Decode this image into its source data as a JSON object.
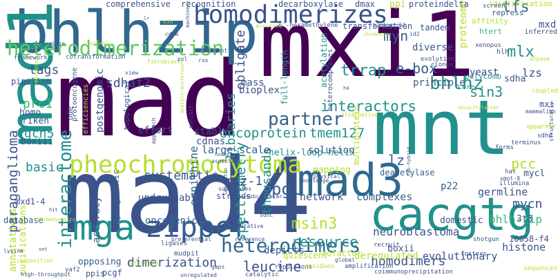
{
  "palette": {
    "dark_purple": "#440154",
    "indigo": "#3b528b",
    "navy": "#31688e",
    "steel_blue": "#355f8d",
    "teal": "#21918c",
    "green": "#35b779",
    "light_green": "#5ec962",
    "yellow_green": "#b5de2b",
    "yellow": "#fde725"
  },
  "words": [
    {
      "text": "mad",
      "color": "#440154"
    },
    {
      "text": "mad4",
      "color": "#3b528b"
    },
    {
      "text": "mxi1",
      "color": "#440154"
    },
    {
      "text": "mnt",
      "color": "#21918c"
    },
    {
      "text": "bhlhzip",
      "color": "#31688e"
    },
    {
      "text": "mad1",
      "color": "#21918c"
    },
    {
      "text": "cacgtg",
      "color": "#21918c"
    },
    {
      "text": "mad3",
      "color": "#31688e"
    },
    {
      "text": "homodimerizes",
      "color": "#3b528b"
    },
    {
      "text": "heterodimerization",
      "color": "#5ec962"
    },
    {
      "text": "pheochromocytoma",
      "color": "#b5de2b"
    },
    {
      "text": "zipper",
      "color": "#355f8d"
    },
    {
      "text": "mga",
      "color": "#21918c"
    },
    {
      "text": "heterodimers",
      "color": "#31688e"
    },
    {
      "text": "interactome",
      "color": "#21918c"
    },
    {
      "text": "oncoprotein",
      "color": "#21918c"
    },
    {
      "text": "tmem127",
      "color": "#21918c"
    },
    {
      "text": "interactors",
      "color": "#21918c"
    },
    {
      "text": "partner",
      "color": "#355f8d"
    },
    {
      "text": "paraganglioma",
      "color": "#3b528b"
    },
    {
      "text": "spectrometry",
      "color": "#21918c"
    },
    {
      "text": "libraries",
      "color": "#21918c"
    },
    {
      "text": "thousands",
      "color": "#21918c"
    },
    {
      "text": "msin3",
      "color": "#b5de2b"
    },
    {
      "text": "resource",
      "color": "#21918c"
    },
    {
      "text": "leucine",
      "color": "#3b528b"
    },
    {
      "text": "dimerization",
      "color": "#3b528b"
    },
    {
      "text": "homodimers",
      "color": "#3b528b"
    },
    {
      "text": "neuroblastoma",
      "color": "#3b528b"
    },
    {
      "text": "pgl",
      "color": "#355f8d"
    },
    {
      "text": "bhlhz",
      "color": "#21918c"
    },
    {
      "text": "trrap",
      "color": "#21918c"
    },
    {
      "text": "e-box",
      "color": "#355f8d"
    },
    {
      "text": "myn",
      "color": "#355f8d"
    },
    {
      "text": "lz",
      "color": "#355f8d"
    },
    {
      "text": "sin3",
      "color": "#21918c"
    },
    {
      "text": "tfs",
      "color": "#31688e"
    },
    {
      "text": "mlx",
      "color": "#21918c"
    },
    {
      "text": "pcc",
      "color": "#b5de2b"
    },
    {
      "text": "mycn",
      "color": "#3b528b"
    },
    {
      "text": "bhlh-zip",
      "color": "#35b779"
    },
    {
      "text": "miz-1",
      "color": "#3b528b"
    },
    {
      "text": "sdhaf2",
      "color": "#3b528b"
    },
    {
      "text": "tags",
      "color": "#3b528b"
    },
    {
      "text": "prc1",
      "color": "#35b779"
    },
    {
      "text": "gcn5",
      "color": "#21918c"
    },
    {
      "text": "basic",
      "color": "#21918c"
    },
    {
      "text": "systematic",
      "color": "#3b528b"
    },
    {
      "text": "ornithine",
      "color": "#31688e"
    },
    {
      "text": "obligate",
      "color": "#3b528b"
    },
    {
      "text": "proteome",
      "color": "#b5de2b"
    },
    {
      "text": "network",
      "color": "#3b528b"
    },
    {
      "text": "complexes",
      "color": "#355f8d"
    },
    {
      "text": "germline",
      "color": "#3b528b"
    },
    {
      "text": "histone",
      "color": "#3b528b"
    },
    {
      "text": "evolutionary",
      "color": "#3b528b"
    },
    {
      "text": "deregulated",
      "color": "#b5de2b"
    },
    {
      "text": "domestic",
      "color": "#3b528b"
    },
    {
      "text": "boxii",
      "color": "#3b528b"
    },
    {
      "text": "mapping",
      "color": "#b5de2b"
    },
    {
      "text": "undruggable",
      "color": "#3b528b"
    },
    {
      "text": "oncogenic",
      "color": "#355f8d"
    },
    {
      "text": "accuracy",
      "color": "#3b528b"
    },
    {
      "text": "phylogenetic",
      "color": "#355f8d"
    },
    {
      "text": "annotations",
      "color": "#b5de2b"
    },
    {
      "text": "purifications",
      "color": "#b5de2b"
    },
    {
      "text": "database",
      "color": "#355f8d"
    },
    {
      "text": "mxd1-4",
      "color": "#3b528b"
    },
    {
      "text": "opposing",
      "color": "#355f8d"
    },
    {
      "text": "pcgf",
      "color": "#3b528b"
    },
    {
      "text": "ppis",
      "color": "#3b528b"
    },
    {
      "text": "strands",
      "color": "#3b528b"
    },
    {
      "text": "depicts",
      "color": "#3b528b"
    },
    {
      "text": "p22",
      "color": "#355f8d"
    },
    {
      "text": "3t3",
      "color": "#3b528b"
    },
    {
      "text": "mycl",
      "color": "#3b528b"
    },
    {
      "text": "10058-f4",
      "color": "#3b528b"
    },
    {
      "text": "multiprotein",
      "color": "#b5de2b"
    },
    {
      "text": "deacetylase",
      "color": "#355f8d"
    },
    {
      "text": "helix-loop-helix",
      "color": "#21918c"
    },
    {
      "text": "large-scale",
      "color": "#355f8d"
    },
    {
      "text": "solution",
      "color": "#3b528b"
    },
    {
      "text": "stable",
      "color": "#3b528b"
    },
    {
      "text": "cdnas",
      "color": "#3b528b"
    },
    {
      "text": "bioplex",
      "color": "#3b528b"
    },
    {
      "text": "effort",
      "color": "#3b528b"
    },
    {
      "text": "boxiii",
      "color": "#3b528b"
    },
    {
      "text": "riken",
      "color": "#3b528b"
    },
    {
      "text": "homo",
      "color": "#3b528b"
    },
    {
      "text": "pipeline",
      "color": "#3b528b"
    },
    {
      "text": "full-length",
      "color": "#21918c"
    },
    {
      "text": "acetylation",
      "color": "#21918c"
    },
    {
      "text": "diverse",
      "color": "#3b528b"
    },
    {
      "text": "principle",
      "color": "#355f8d"
    },
    {
      "text": "yeast",
      "color": "#3b528b"
    },
    {
      "text": "polycomb",
      "color": "#21918c"
    },
    {
      "text": "lzs",
      "color": "#3b528b"
    },
    {
      "text": "sdha",
      "color": "#3b528b"
    },
    {
      "text": "mass",
      "color": "#3b528b"
    },
    {
      "text": "comprehensive",
      "color": "#3b528b"
    },
    {
      "text": "recognition",
      "color": "#3b528b"
    },
    {
      "text": "decarboxylase",
      "color": "#355f8d"
    },
    {
      "text": "dmax",
      "color": "#3b528b"
    },
    {
      "text": "ppi",
      "color": "#b5de2b"
    },
    {
      "text": "proteindelta",
      "color": "#3b528b"
    },
    {
      "text": "identification",
      "color": "#b5de2b"
    },
    {
      "text": "repress",
      "color": "#3b528b"
    },
    {
      "text": "affinity",
      "color": "#b5de2b"
    },
    {
      "text": "tandem",
      "color": "#3b528b"
    },
    {
      "text": "transformation",
      "color": "#3b528b"
    },
    {
      "text": "mxd",
      "color": "#3b528b"
    },
    {
      "text": "inferred",
      "color": "#3b528b"
    },
    {
      "text": "htert",
      "color": "#35b779"
    },
    {
      "text": "xenopus",
      "color": "#3b528b"
    },
    {
      "text": "hlh",
      "color": "#3b528b"
    },
    {
      "text": "n'-hexamethylene",
      "color": "#3b528b"
    },
    {
      "text": "accurate",
      "color": "#b5de2b"
    },
    {
      "text": "biological",
      "color": "#3b528b"
    },
    {
      "text": "chromatin",
      "color": "#b5de2b"
    },
    {
      "text": "id2",
      "color": "#3b528b"
    },
    {
      "text": "evolution",
      "color": "#3b528b"
    },
    {
      "text": "clones",
      "color": "#3b528b"
    },
    {
      "text": "atpase",
      "color": "#b5de2b"
    },
    {
      "text": "core",
      "color": "#21918c"
    },
    {
      "text": "coupled",
      "color": "#b5de2b"
    },
    {
      "text": "mxi",
      "color": "#3b528b"
    },
    {
      "text": "mammalian",
      "color": "#3b528b"
    },
    {
      "text": "ubiquitylation",
      "color": "#b5de2b"
    },
    {
      "text": "alternative",
      "color": "#b5de2b"
    },
    {
      "text": "apparent",
      "color": "#b5de2b"
    },
    {
      "text": "sdhd",
      "color": "#3b528b"
    },
    {
      "text": "screen",
      "color": "#3b528b"
    },
    {
      "text": "two-hybrid",
      "color": "#3b528b"
    },
    {
      "text": "hat",
      "color": "#3b528b"
    },
    {
      "text": "xmnt-8",
      "color": "#3b528b"
    },
    {
      "text": "illumina",
      "color": "#3b528b"
    },
    {
      "text": "terminus",
      "color": "#3b528b"
    },
    {
      "text": "forms",
      "color": "#3b528b"
    },
    {
      "text": "structurally",
      "color": "#3b528b"
    },
    {
      "text": "cofactor",
      "color": "#b5de2b"
    },
    {
      "text": "quiescent",
      "color": "#b5de2b"
    },
    {
      "text": "recruit",
      "color": "#3b528b"
    },
    {
      "text": "global",
      "color": "#3b528b"
    },
    {
      "text": "repulsions",
      "color": "#3b528b"
    },
    {
      "text": "residues",
      "color": "#b5de2b"
    },
    {
      "text": "amplification",
      "color": "#3b528b"
    },
    {
      "text": "coimmunoprecipitation",
      "color": "#3b528b"
    },
    {
      "text": "catalytic",
      "color": "#3b528b"
    },
    {
      "text": "gaps",
      "color": "#3b528b"
    },
    {
      "text": "reference",
      "color": "#3b528b"
    },
    {
      "text": "shotgun",
      "color": "#3b528b"
    },
    {
      "text": "fosters",
      "color": "#3b528b"
    },
    {
      "text": "sequences",
      "color": "#b5de2b"
    },
    {
      "text": "sdhc",
      "color": "#3b528b"
    },
    {
      "text": "preferential",
      "color": "#3b528b"
    },
    {
      "text": "putative",
      "color": "#3b528b"
    },
    {
      "text": "mudpit",
      "color": "#3b528b"
    },
    {
      "text": "unregulated",
      "color": "#3b528b"
    },
    {
      "text": "ligases",
      "color": "#3b528b"
    },
    {
      "text": "splicing",
      "color": "#b5de2b"
    },
    {
      "text": "yaf2",
      "color": "#3b528b"
    },
    {
      "text": "high-throughput",
      "color": "#3b528b"
    },
    {
      "text": "composition",
      "color": "#b5de2b"
    },
    {
      "text": "set",
      "color": "#3b528b"
    },
    {
      "text": "lysine",
      "color": "#3b528b"
    },
    {
      "text": "thermodynamics",
      "color": "#b5de2b"
    },
    {
      "text": "hit",
      "color": "#3b528b"
    },
    {
      "text": "knowledge",
      "color": "#3b528b"
    },
    {
      "text": "physical",
      "color": "#3b528b"
    },
    {
      "text": "subcellular",
      "color": "#3b528b"
    },
    {
      "text": "substrates",
      "color": "#3b528b"
    },
    {
      "text": "aspects",
      "color": "#3b528b"
    },
    {
      "text": "hnrnp",
      "color": "#3b528b"
    },
    {
      "text": "ubiquitin",
      "color": "#3b528b"
    },
    {
      "text": "topological",
      "color": "#3b528b"
    },
    {
      "text": "postgenomic",
      "color": "#3b528b"
    },
    {
      "text": "efficiencies",
      "color": "#b5de2b"
    },
    {
      "text": "ode",
      "color": "#3b528b"
    },
    {
      "text": "protooncogene",
      "color": "#3b528b"
    },
    {
      "text": "repressor",
      "color": "#b5de2b"
    },
    {
      "text": "approach",
      "color": "#3b528b"
    },
    {
      "text": "acetyltransferase",
      "color": "#b5de2b"
    },
    {
      "text": "exhibit",
      "color": "#3b528b"
    },
    {
      "text": "view",
      "color": "#3b528b"
    },
    {
      "text": "fibroblasts",
      "color": "#b5de2b"
    },
    {
      "text": "pol",
      "color": "#3b528b"
    },
    {
      "text": "rox",
      "color": "#3b528b"
    },
    {
      "text": "h4",
      "color": "#3b528b"
    },
    {
      "text": "heterocomplexes",
      "color": "#3b528b"
    },
    {
      "text": "stringent",
      "color": "#3b528b"
    },
    {
      "text": "machinery",
      "color": "#3b528b"
    },
    {
      "text": "cotransformation",
      "color": "#3b528b"
    },
    {
      "text": "framework",
      "color": "#3b528b"
    },
    {
      "text": "colocalize",
      "color": "#3b528b"
    },
    {
      "text": "assembly",
      "color": "#b5de2b"
    },
    {
      "text": "cdna",
      "color": "#3b528b"
    },
    {
      "text": "hih",
      "color": "#b5de2b"
    },
    {
      "text": "lr",
      "color": "#3b528b"
    }
  ]
}
